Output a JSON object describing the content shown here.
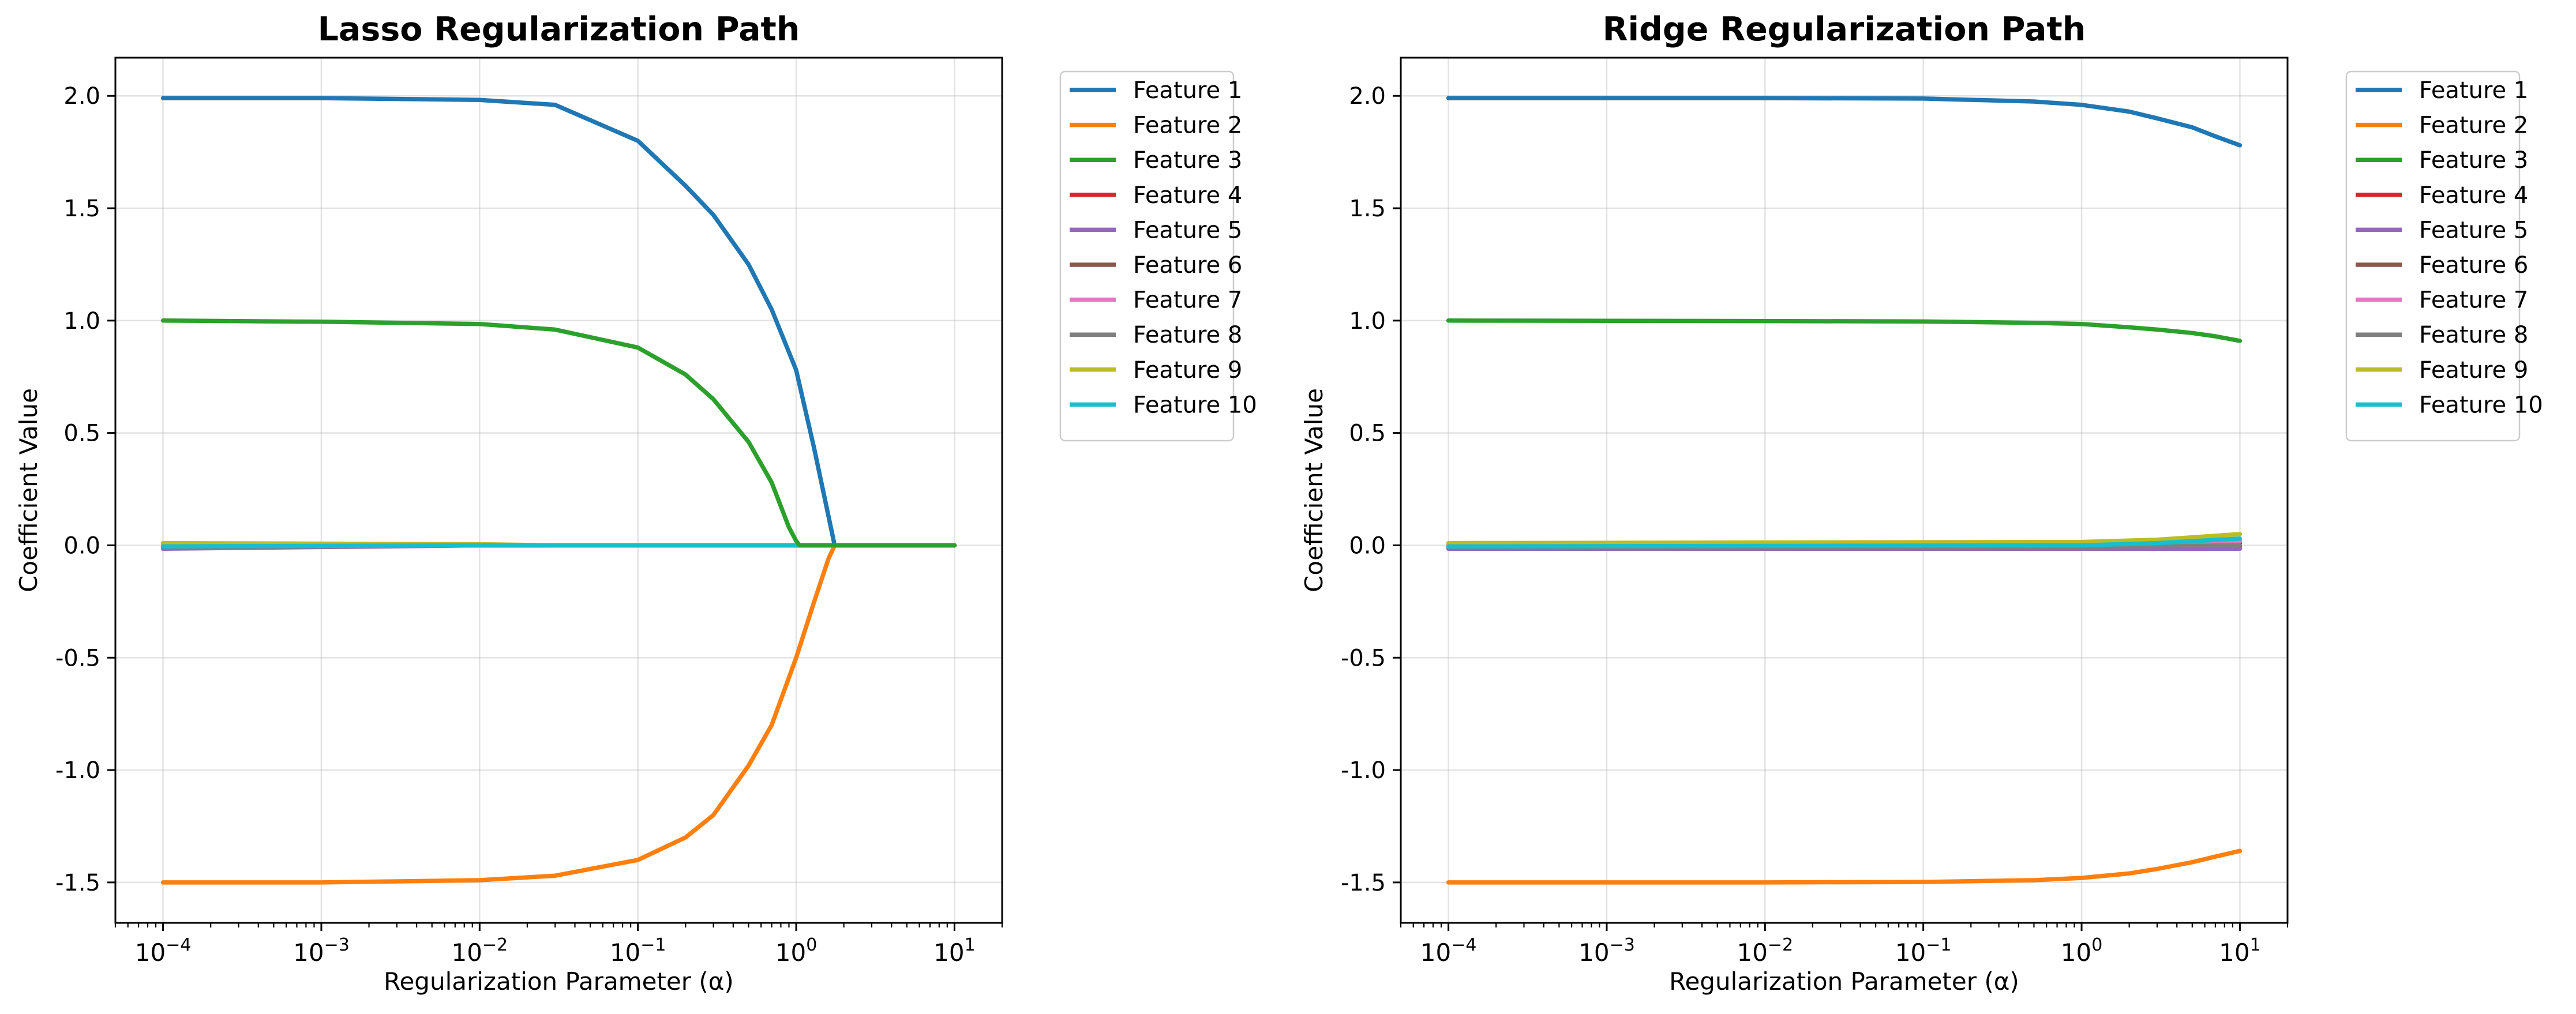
{
  "chart_data": [
    {
      "type": "line",
      "title": "Lasso Regularization Path",
      "xlabel": "Regularization Parameter (α)",
      "ylabel": "Coefficient Value",
      "x_scale": "log",
      "xlim": [
        5e-05,
        20
      ],
      "ylim": [
        -1.68,
        2.17
      ],
      "x_ticks": [
        {
          "value": 0.0001,
          "base": "10",
          "exp": "−4"
        },
        {
          "value": 0.001,
          "base": "10",
          "exp": "−3"
        },
        {
          "value": 0.01,
          "base": "10",
          "exp": "−2"
        },
        {
          "value": 0.1,
          "base": "10",
          "exp": "−1"
        },
        {
          "value": 1,
          "base": "10",
          "exp": "0"
        },
        {
          "value": 10,
          "base": "10",
          "exp": "1"
        }
      ],
      "y_ticks": [
        {
          "value": -1.5,
          "label": "-1.5"
        },
        {
          "value": -1.0,
          "label": "-1.0"
        },
        {
          "value": -0.5,
          "label": "-0.5"
        },
        {
          "value": 0.0,
          "label": "0.0"
        },
        {
          "value": 0.5,
          "label": "0.5"
        },
        {
          "value": 1.0,
          "label": "1.0"
        },
        {
          "value": 1.5,
          "label": "1.5"
        },
        {
          "value": 2.0,
          "label": "2.0"
        }
      ],
      "grid": true,
      "legend_position": "outside-top-right",
      "series": [
        {
          "name": "Feature 1",
          "color": "#1f77b4",
          "points": [
            [
              0.0001,
              1.99
            ],
            [
              0.001,
              1.99
            ],
            [
              0.01,
              1.982
            ],
            [
              0.03,
              1.96
            ],
            [
              0.1,
              1.8
            ],
            [
              0.2,
              1.6
            ],
            [
              0.3,
              1.47
            ],
            [
              0.5,
              1.25
            ],
            [
              0.7,
              1.05
            ],
            [
              1.0,
              0.78
            ],
            [
              1.3,
              0.43
            ],
            [
              1.6,
              0.13
            ],
            [
              1.75,
              0.0
            ],
            [
              10,
              0.0
            ]
          ]
        },
        {
          "name": "Feature 2",
          "color": "#ff7f0e",
          "points": [
            [
              0.0001,
              -1.5
            ],
            [
              0.001,
              -1.5
            ],
            [
              0.01,
              -1.49
            ],
            [
              0.03,
              -1.47
            ],
            [
              0.1,
              -1.4
            ],
            [
              0.2,
              -1.3
            ],
            [
              0.3,
              -1.2
            ],
            [
              0.5,
              -0.98
            ],
            [
              0.7,
              -0.8
            ],
            [
              1.0,
              -0.5
            ],
            [
              1.3,
              -0.25
            ],
            [
              1.6,
              -0.06
            ],
            [
              1.75,
              0.0
            ],
            [
              10,
              0.0
            ]
          ]
        },
        {
          "name": "Feature 3",
          "color": "#2ca02c",
          "points": [
            [
              0.0001,
              1.0
            ],
            [
              0.001,
              0.995
            ],
            [
              0.01,
              0.985
            ],
            [
              0.03,
              0.96
            ],
            [
              0.1,
              0.88
            ],
            [
              0.2,
              0.76
            ],
            [
              0.3,
              0.65
            ],
            [
              0.5,
              0.46
            ],
            [
              0.7,
              0.28
            ],
            [
              0.9,
              0.08
            ],
            [
              1.0,
              0.02
            ],
            [
              1.05,
              0.0
            ],
            [
              10,
              0.0
            ]
          ]
        },
        {
          "name": "Feature 4",
          "color": "#d62728",
          "points": [
            [
              0.0001,
              -0.01
            ],
            [
              0.01,
              0.0
            ],
            [
              10,
              0.0
            ]
          ]
        },
        {
          "name": "Feature 5",
          "color": "#9467bd",
          "points": [
            [
              0.0001,
              -0.015
            ],
            [
              0.01,
              0.0
            ],
            [
              10,
              0.0
            ]
          ]
        },
        {
          "name": "Feature 6",
          "color": "#8c564b",
          "points": [
            [
              0.0001,
              -0.005
            ],
            [
              0.01,
              0.0
            ],
            [
              10,
              0.0
            ]
          ]
        },
        {
          "name": "Feature 7",
          "color": "#e377c2",
          "points": [
            [
              0.0001,
              0.005
            ],
            [
              0.01,
              0.0
            ],
            [
              10,
              0.0
            ]
          ]
        },
        {
          "name": "Feature 8",
          "color": "#7f7f7f",
          "points": [
            [
              0.0001,
              -0.008
            ],
            [
              0.01,
              0.0
            ],
            [
              10,
              0.0
            ]
          ]
        },
        {
          "name": "Feature 9",
          "color": "#bcbd22",
          "points": [
            [
              0.0001,
              0.01
            ],
            [
              0.01,
              0.005
            ],
            [
              0.03,
              0.0
            ],
            [
              10,
              0.0
            ]
          ]
        },
        {
          "name": "Feature 10",
          "color": "#17becf",
          "points": [
            [
              0.0001,
              -0.005
            ],
            [
              0.01,
              0.0
            ],
            [
              10,
              0.0
            ]
          ]
        }
      ]
    },
    {
      "type": "line",
      "title": "Ridge Regularization Path",
      "xlabel": "Regularization Parameter (α)",
      "ylabel": "Coefficient Value",
      "x_scale": "log",
      "xlim": [
        5e-05,
        20
      ],
      "ylim": [
        -1.68,
        2.17
      ],
      "x_ticks": [
        {
          "value": 0.0001,
          "base": "10",
          "exp": "−4"
        },
        {
          "value": 0.001,
          "base": "10",
          "exp": "−3"
        },
        {
          "value": 0.01,
          "base": "10",
          "exp": "−2"
        },
        {
          "value": 0.1,
          "base": "10",
          "exp": "−1"
        },
        {
          "value": 1,
          "base": "10",
          "exp": "0"
        },
        {
          "value": 10,
          "base": "10",
          "exp": "1"
        }
      ],
      "y_ticks": [
        {
          "value": -1.5,
          "label": "-1.5"
        },
        {
          "value": -1.0,
          "label": "-1.0"
        },
        {
          "value": -0.5,
          "label": "-0.5"
        },
        {
          "value": 0.0,
          "label": "0.0"
        },
        {
          "value": 0.5,
          "label": "0.5"
        },
        {
          "value": 1.0,
          "label": "1.0"
        },
        {
          "value": 1.5,
          "label": "1.5"
        },
        {
          "value": 2.0,
          "label": "2.0"
        }
      ],
      "grid": true,
      "legend_position": "outside-top-right",
      "series": [
        {
          "name": "Feature 1",
          "color": "#1f77b4",
          "points": [
            [
              0.0001,
              1.99
            ],
            [
              0.01,
              1.99
            ],
            [
              0.1,
              1.988
            ],
            [
              0.5,
              1.975
            ],
            [
              1,
              1.96
            ],
            [
              2,
              1.93
            ],
            [
              3,
              1.9
            ],
            [
              5,
              1.86
            ],
            [
              7,
              1.82
            ],
            [
              10,
              1.78
            ]
          ]
        },
        {
          "name": "Feature 2",
          "color": "#ff7f0e",
          "points": [
            [
              0.0001,
              -1.5
            ],
            [
              0.01,
              -1.5
            ],
            [
              0.1,
              -1.498
            ],
            [
              0.5,
              -1.49
            ],
            [
              1,
              -1.48
            ],
            [
              2,
              -1.46
            ],
            [
              3,
              -1.44
            ],
            [
              5,
              -1.41
            ],
            [
              7,
              -1.385
            ],
            [
              10,
              -1.36
            ]
          ]
        },
        {
          "name": "Feature 3",
          "color": "#2ca02c",
          "points": [
            [
              0.0001,
              1.0
            ],
            [
              0.01,
              0.998
            ],
            [
              0.1,
              0.996
            ],
            [
              0.5,
              0.99
            ],
            [
              1,
              0.985
            ],
            [
              2,
              0.97
            ],
            [
              3,
              0.96
            ],
            [
              5,
              0.945
            ],
            [
              7,
              0.93
            ],
            [
              10,
              0.91
            ]
          ]
        },
        {
          "name": "Feature 4",
          "color": "#d62728",
          "points": [
            [
              0.0001,
              -0.01
            ],
            [
              1,
              -0.01
            ],
            [
              10,
              -0.005
            ]
          ]
        },
        {
          "name": "Feature 5",
          "color": "#9467bd",
          "points": [
            [
              0.0001,
              -0.015
            ],
            [
              1,
              -0.015
            ],
            [
              10,
              -0.015
            ]
          ]
        },
        {
          "name": "Feature 6",
          "color": "#8c564b",
          "points": [
            [
              0.0001,
              -0.005
            ],
            [
              1,
              -0.004
            ],
            [
              10,
              0.01
            ]
          ]
        },
        {
          "name": "Feature 7",
          "color": "#e377c2",
          "points": [
            [
              0.0001,
              0.005
            ],
            [
              1,
              0.006
            ],
            [
              10,
              0.02
            ]
          ]
        },
        {
          "name": "Feature 8",
          "color": "#7f7f7f",
          "points": [
            [
              0.0001,
              -0.008
            ],
            [
              1,
              -0.007
            ],
            [
              10,
              0.0
            ]
          ]
        },
        {
          "name": "Feature 9",
          "color": "#bcbd22",
          "points": [
            [
              0.0001,
              0.01
            ],
            [
              1,
              0.015
            ],
            [
              3,
              0.025
            ],
            [
              10,
              0.05
            ]
          ]
        },
        {
          "name": "Feature 10",
          "color": "#17becf",
          "points": [
            [
              0.0001,
              -0.005
            ],
            [
              1,
              0.0
            ],
            [
              3,
              0.01
            ],
            [
              10,
              0.03
            ]
          ]
        }
      ]
    }
  ]
}
